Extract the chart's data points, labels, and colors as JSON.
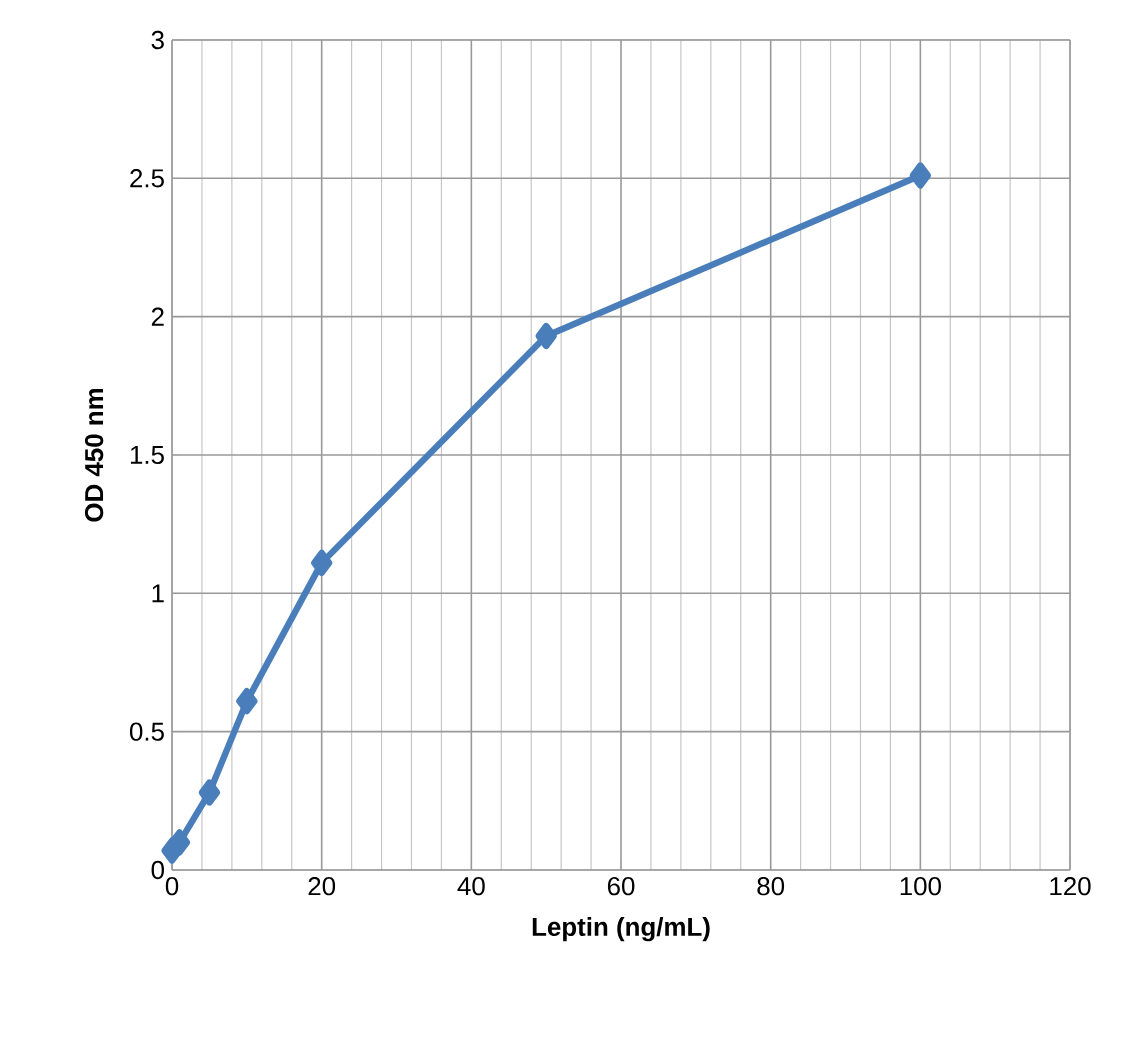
{
  "chart_data": {
    "type": "line",
    "xlabel": "Leptin (ng/mL)",
    "ylabel": "OD 450 nm",
    "series": [
      {
        "color": "#4a7ebb",
        "x": [
          0,
          1,
          5,
          10,
          20,
          50,
          100
        ],
        "values": [
          0.07,
          0.1,
          0.28,
          0.61,
          1.11,
          1.93,
          2.51
        ]
      }
    ],
    "xlim": [
      0,
      120
    ],
    "xticks": [
      0,
      20,
      40,
      60,
      80,
      100,
      120
    ],
    "ylim": [
      0,
      3
    ],
    "yticks": [
      0,
      0.5,
      1,
      1.5,
      2,
      2.5,
      3
    ],
    "grid": true,
    "marker": "diamond",
    "line_style": "solid"
  }
}
